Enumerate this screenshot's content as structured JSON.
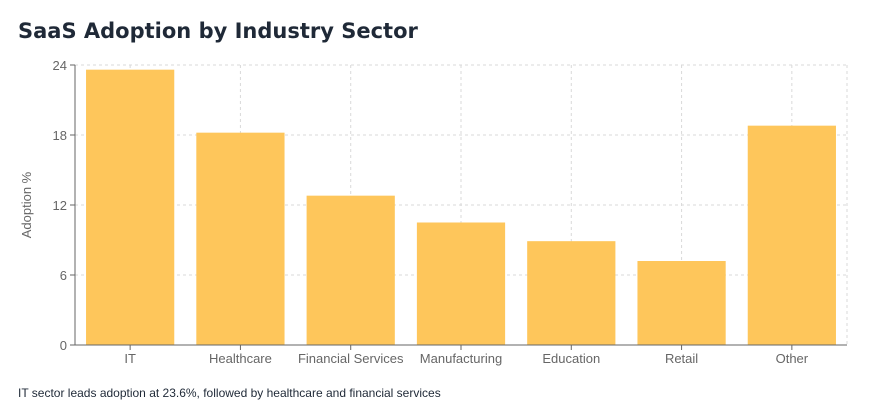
{
  "title": "SaaS Adoption by Industry Sector",
  "caption": "IT sector leads adoption at 23.6%, followed by healthcare and financial services",
  "colors": {
    "bar": "#fec65b",
    "grid": "#d9d9d9",
    "axis": "#666666",
    "text": "#1f2937"
  },
  "chart_data": {
    "type": "bar",
    "title": "SaaS Adoption by Industry Sector",
    "xlabel": "",
    "ylabel": "Adoption %",
    "categories": [
      "IT",
      "Healthcare",
      "Financial Services",
      "Manufacturing",
      "Education",
      "Retail",
      "Other"
    ],
    "values": [
      23.6,
      18.2,
      12.8,
      10.5,
      8.9,
      7.2,
      18.8
    ],
    "ylim": [
      0,
      24
    ],
    "yticks": [
      0,
      6,
      12,
      18,
      24
    ],
    "grid": true,
    "legend": "none"
  }
}
